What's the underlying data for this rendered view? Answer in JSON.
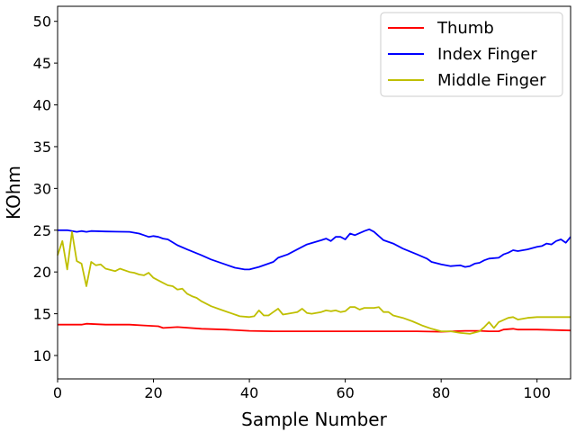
{
  "chart_data": {
    "type": "line",
    "xlabel": "Sample Number",
    "ylabel": "KOhm",
    "xlim": [
      0,
      107
    ],
    "ylim": [
      7.2,
      51.8
    ],
    "xticks": [
      0,
      20,
      40,
      60,
      80,
      100
    ],
    "yticks": [
      10,
      15,
      20,
      25,
      30,
      35,
      40,
      45,
      50
    ],
    "grid": false,
    "legend_position": "top-right",
    "series": [
      {
        "name": "Thumb",
        "color": "#ff0000",
        "points": [
          [
            0,
            13.7
          ],
          [
            5,
            13.7
          ],
          [
            6,
            13.8
          ],
          [
            10,
            13.7
          ],
          [
            15,
            13.7
          ],
          [
            18,
            13.6
          ],
          [
            21,
            13.5
          ],
          [
            22,
            13.3
          ],
          [
            25,
            13.4
          ],
          [
            30,
            13.2
          ],
          [
            35,
            13.1
          ],
          [
            40,
            12.95
          ],
          [
            45,
            12.9
          ],
          [
            50,
            12.9
          ],
          [
            55,
            12.9
          ],
          [
            60,
            12.9
          ],
          [
            65,
            12.9
          ],
          [
            70,
            12.9
          ],
          [
            75,
            12.9
          ],
          [
            80,
            12.85
          ],
          [
            85,
            12.95
          ],
          [
            88,
            12.95
          ],
          [
            90,
            12.9
          ],
          [
            92,
            12.9
          ],
          [
            93,
            13.1
          ],
          [
            95,
            13.2
          ],
          [
            96,
            13.1
          ],
          [
            100,
            13.1
          ],
          [
            107,
            13.0
          ]
        ]
      },
      {
        "name": "Index Finger",
        "color": "#0000ff",
        "points": [
          [
            0,
            25.0
          ],
          [
            2,
            25.0
          ],
          [
            4,
            24.8
          ],
          [
            5,
            24.9
          ],
          [
            6,
            24.8
          ],
          [
            7,
            24.9
          ],
          [
            10,
            24.85
          ],
          [
            15,
            24.8
          ],
          [
            17,
            24.6
          ],
          [
            18,
            24.4
          ],
          [
            19,
            24.2
          ],
          [
            20,
            24.3
          ],
          [
            21,
            24.2
          ],
          [
            22,
            24.0
          ],
          [
            23,
            23.9
          ],
          [
            25,
            23.2
          ],
          [
            27,
            22.7
          ],
          [
            30,
            22.0
          ],
          [
            32,
            21.5
          ],
          [
            35,
            20.9
          ],
          [
            37,
            20.5
          ],
          [
            39,
            20.3
          ],
          [
            40,
            20.3
          ],
          [
            42,
            20.6
          ],
          [
            44,
            21.0
          ],
          [
            45,
            21.2
          ],
          [
            46,
            21.7
          ],
          [
            48,
            22.1
          ],
          [
            50,
            22.7
          ],
          [
            52,
            23.3
          ],
          [
            55,
            23.8
          ],
          [
            56,
            24.0
          ],
          [
            57,
            23.7
          ],
          [
            58,
            24.2
          ],
          [
            59,
            24.2
          ],
          [
            60,
            23.9
          ],
          [
            61,
            24.6
          ],
          [
            62,
            24.4
          ],
          [
            64,
            24.9
          ],
          [
            65,
            25.1
          ],
          [
            66,
            24.8
          ],
          [
            67,
            24.3
          ],
          [
            68,
            23.8
          ],
          [
            70,
            23.4
          ],
          [
            72,
            22.8
          ],
          [
            75,
            22.1
          ],
          [
            77,
            21.6
          ],
          [
            78,
            21.2
          ],
          [
            80,
            20.9
          ],
          [
            82,
            20.7
          ],
          [
            84,
            20.8
          ],
          [
            85,
            20.6
          ],
          [
            86,
            20.7
          ],
          [
            87,
            21.0
          ],
          [
            88,
            21.1
          ],
          [
            89,
            21.4
          ],
          [
            90,
            21.6
          ],
          [
            92,
            21.7
          ],
          [
            93,
            22.1
          ],
          [
            94,
            22.3
          ],
          [
            95,
            22.6
          ],
          [
            96,
            22.5
          ],
          [
            98,
            22.7
          ],
          [
            100,
            23.0
          ],
          [
            101,
            23.1
          ],
          [
            102,
            23.4
          ],
          [
            103,
            23.3
          ],
          [
            104,
            23.7
          ],
          [
            105,
            23.9
          ],
          [
            106,
            23.5
          ],
          [
            107,
            24.2
          ]
        ]
      },
      {
        "name": "Middle Finger",
        "color": "#bfbf00",
        "points": [
          [
            0,
            22.0
          ],
          [
            1,
            23.7
          ],
          [
            2,
            20.3
          ],
          [
            3,
            24.8
          ],
          [
            4,
            21.3
          ],
          [
            5,
            21.0
          ],
          [
            6,
            18.3
          ],
          [
            7,
            21.2
          ],
          [
            8,
            20.8
          ],
          [
            9,
            20.9
          ],
          [
            10,
            20.4
          ],
          [
            12,
            20.1
          ],
          [
            13,
            20.4
          ],
          [
            15,
            20.0
          ],
          [
            16,
            19.9
          ],
          [
            17,
            19.7
          ],
          [
            18,
            19.6
          ],
          [
            19,
            19.9
          ],
          [
            20,
            19.3
          ],
          [
            22,
            18.7
          ],
          [
            23,
            18.4
          ],
          [
            24,
            18.3
          ],
          [
            25,
            17.9
          ],
          [
            26,
            18.0
          ],
          [
            27,
            17.4
          ],
          [
            28,
            17.1
          ],
          [
            29,
            16.9
          ],
          [
            30,
            16.5
          ],
          [
            32,
            15.9
          ],
          [
            34,
            15.5
          ],
          [
            36,
            15.1
          ],
          [
            38,
            14.7
          ],
          [
            40,
            14.6
          ],
          [
            41,
            14.7
          ],
          [
            42,
            15.4
          ],
          [
            43,
            14.8
          ],
          [
            44,
            14.8
          ],
          [
            45,
            15.2
          ],
          [
            46,
            15.6
          ],
          [
            47,
            14.9
          ],
          [
            48,
            15.0
          ],
          [
            50,
            15.2
          ],
          [
            51,
            15.6
          ],
          [
            52,
            15.1
          ],
          [
            53,
            15.0
          ],
          [
            55,
            15.2
          ],
          [
            56,
            15.4
          ],
          [
            57,
            15.3
          ],
          [
            58,
            15.4
          ],
          [
            59,
            15.2
          ],
          [
            60,
            15.3
          ],
          [
            61,
            15.8
          ],
          [
            62,
            15.8
          ],
          [
            63,
            15.5
          ],
          [
            64,
            15.7
          ],
          [
            66,
            15.7
          ],
          [
            67,
            15.8
          ],
          [
            68,
            15.2
          ],
          [
            69,
            15.2
          ],
          [
            70,
            14.8
          ],
          [
            72,
            14.5
          ],
          [
            74,
            14.1
          ],
          [
            76,
            13.6
          ],
          [
            78,
            13.2
          ],
          [
            80,
            12.9
          ],
          [
            82,
            12.9
          ],
          [
            84,
            12.7
          ],
          [
            86,
            12.6
          ],
          [
            88,
            12.9
          ],
          [
            89,
            13.4
          ],
          [
            90,
            14.0
          ],
          [
            91,
            13.3
          ],
          [
            92,
            14.0
          ],
          [
            94,
            14.5
          ],
          [
            95,
            14.6
          ],
          [
            96,
            14.3
          ],
          [
            98,
            14.5
          ],
          [
            100,
            14.6
          ],
          [
            104,
            14.6
          ],
          [
            107,
            14.6
          ]
        ]
      }
    ]
  }
}
